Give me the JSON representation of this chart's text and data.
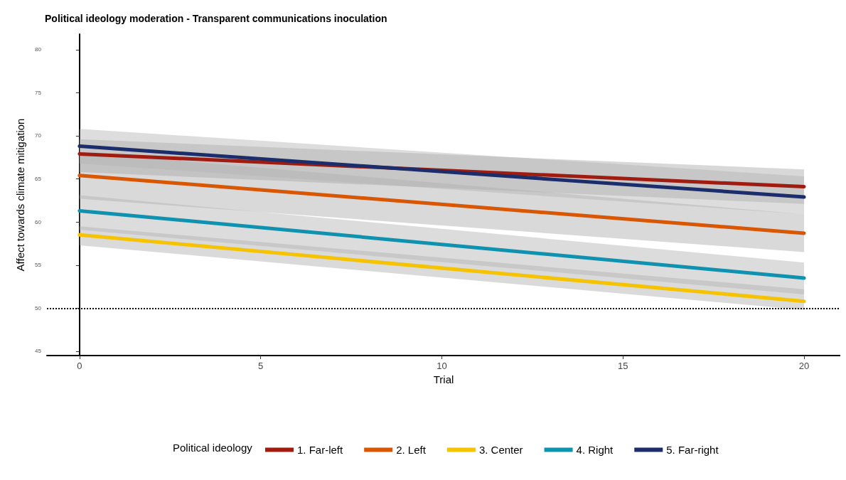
{
  "chart_data": {
    "type": "line",
    "title": "Political ideology moderation - Transparent communications inoculation",
    "xlabel": "Trial",
    "ylabel": "Affect towards climate mitigation",
    "legend_title": "Political ideology",
    "x": [
      0,
      20
    ],
    "series": [
      {
        "name": "1. Far-left",
        "color": "#a01c10",
        "values": [
          67.9,
          64.1
        ],
        "lower": [
          65.8,
          62.1
        ],
        "upper": [
          69.6,
          66.1
        ]
      },
      {
        "name": "2. Left",
        "color": "#d95602",
        "values": [
          65.4,
          58.7
        ],
        "lower": [
          62.7,
          56.5
        ],
        "upper": [
          68.1,
          60.9
        ]
      },
      {
        "name": "3. Center",
        "color": "#f5c300",
        "values": [
          58.5,
          50.8
        ],
        "lower": [
          57.3,
          49.8
        ],
        "upper": [
          59.5,
          52.2
        ]
      },
      {
        "name": "4. Right",
        "color": "#0f91b0",
        "values": [
          61.3,
          53.5
        ],
        "lower": [
          59.1,
          51.6
        ],
        "upper": [
          63.1,
          55.3
        ]
      },
      {
        "name": "5. Far-right",
        "color": "#1c2d6b",
        "values": [
          68.8,
          62.9
        ],
        "lower": [
          66.8,
          60.9
        ],
        "upper": [
          70.8,
          65.3
        ]
      }
    ],
    "xlim": [
      -0.9,
      21
    ],
    "xticks": [
      0,
      5,
      10,
      15,
      20
    ],
    "ylim": [
      44.5,
      81.8
    ],
    "yticks": [
      45,
      50,
      55,
      60,
      65,
      70,
      75,
      80
    ],
    "ref_lines": [
      {
        "axis": "y",
        "value": 50,
        "line_style": "dotted",
        "color": "#000000"
      }
    ],
    "grid": false,
    "legend": "bottom",
    "marker": "none",
    "line_style": "solid"
  }
}
